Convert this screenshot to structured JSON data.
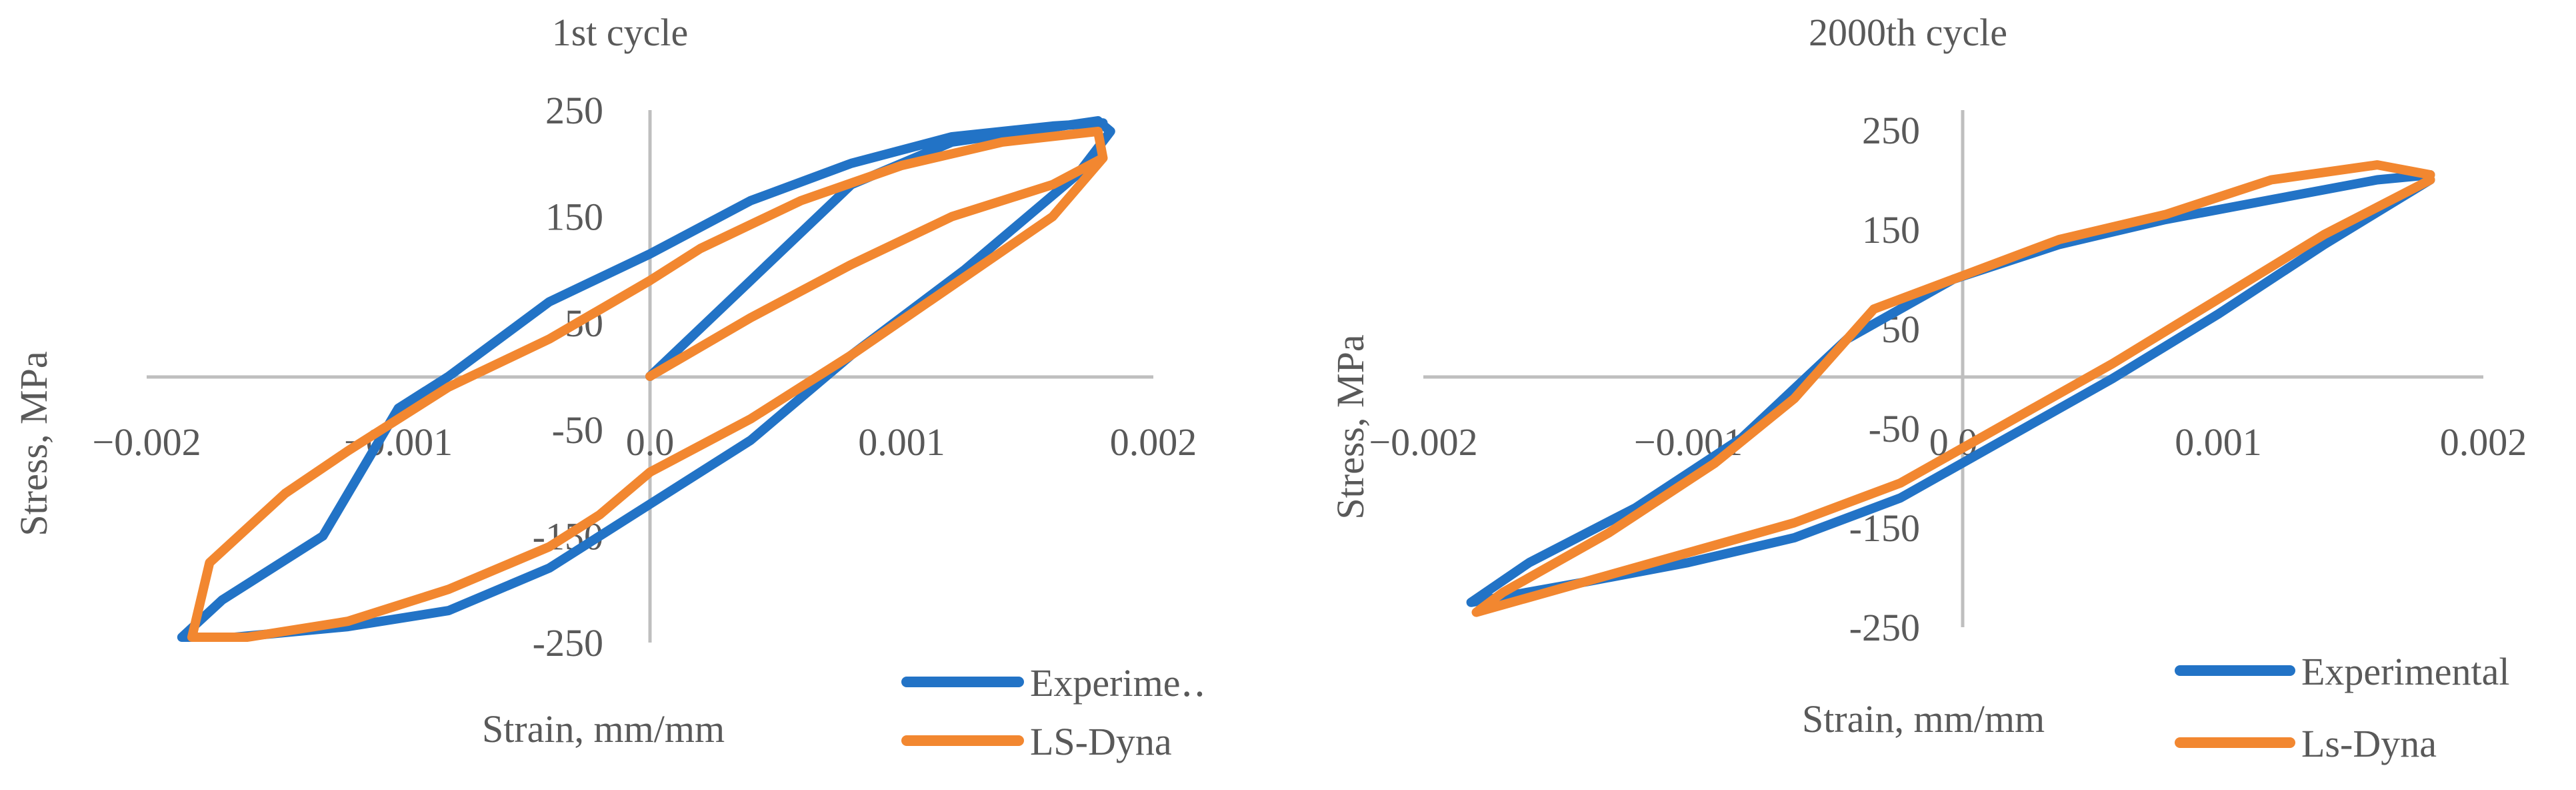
{
  "chart_data": [
    {
      "type": "line",
      "title": "1st cycle",
      "xlabel": "Strain, mm/mm",
      "ylabel": "Stress, MPa",
      "xlim": [
        -0.002,
        0.002
      ],
      "ylim": [
        -250,
        250
      ],
      "x_ticks": [
        "−0.002",
        "−0.001",
        "0.0",
        "0.001",
        "0.002"
      ],
      "y_ticks": [
        "250",
        "150",
        "50",
        "-50",
        "-150",
        "-250"
      ],
      "legend": {
        "position": "bottom-right",
        "entries": [
          "Experime‥",
          "LS-Dyna"
        ]
      },
      "series": [
        {
          "name": "Experimental",
          "color": "#2273c6",
          "points": [
            [
              0.0,
              0.0
            ],
            [
              0.0004,
              90
            ],
            [
              0.0008,
              180
            ],
            [
              0.0012,
              220
            ],
            [
              0.00178,
              240
            ],
            [
              0.00183,
              230
            ],
            [
              0.0017,
              190
            ],
            [
              0.00125,
              100
            ],
            [
              0.0008,
              20
            ],
            [
              0.0004,
              -60
            ],
            [
              0.0,
              -120
            ],
            [
              -0.0004,
              -180
            ],
            [
              -0.0008,
              -220
            ],
            [
              -0.0012,
              -235
            ],
            [
              -0.00165,
              -245
            ],
            [
              -0.00186,
              -245
            ],
            [
              -0.0017,
              -210
            ],
            [
              -0.0013,
              -150
            ],
            [
              -0.001,
              -30
            ],
            [
              -0.0008,
              0
            ],
            [
              -0.0004,
              70
            ],
            [
              0.0,
              115
            ],
            [
              0.0004,
              165
            ],
            [
              0.0008,
              200
            ],
            [
              0.0012,
              225
            ],
            [
              0.0016,
              235
            ],
            [
              0.0018,
              238
            ]
          ]
        },
        {
          "name": "LS-Dyna",
          "color": "#f28730",
          "points": [
            [
              0.0,
              0.0
            ],
            [
              0.0004,
              55
            ],
            [
              0.0008,
              105
            ],
            [
              0.0012,
              150
            ],
            [
              0.0016,
              180
            ],
            [
              0.0018,
              205
            ],
            [
              0.00178,
              230
            ],
            [
              0.0014,
              220
            ],
            [
              0.001,
              198
            ],
            [
              0.0006,
              165
            ],
            [
              0.0002,
              120
            ],
            [
              0.0,
              90
            ],
            [
              -0.0004,
              35
            ],
            [
              -0.0008,
              -10
            ],
            [
              -0.0012,
              -70
            ],
            [
              -0.00145,
              -110
            ],
            [
              -0.00175,
              -175
            ],
            [
              -0.00182,
              -245
            ],
            [
              -0.0016,
              -245
            ],
            [
              -0.0012,
              -230
            ],
            [
              -0.0008,
              -200
            ],
            [
              -0.0004,
              -160
            ],
            [
              -0.0002,
              -130
            ],
            [
              0.0,
              -90
            ],
            [
              0.0004,
              -40
            ],
            [
              0.0008,
              20
            ],
            [
              0.0012,
              85
            ],
            [
              0.0016,
              150
            ],
            [
              0.0018,
              205
            ]
          ]
        }
      ]
    },
    {
      "type": "line",
      "title": "2000th cycle",
      "xlabel": "Strain, mm/mm",
      "ylabel": "Stress, MPa",
      "xlim": [
        -0.002,
        0.002
      ],
      "ylim": [
        -250,
        250
      ],
      "x_ticks": [
        "−0.002",
        "−0.001",
        "0.0",
        "0.001",
        "0.002"
      ],
      "y_ticks": [
        "250",
        "150",
        "50",
        "-50",
        "-150",
        "-250"
      ],
      "legend": {
        "position": "bottom-right",
        "entries": [
          "Experimental",
          "Ls-Dyna"
        ]
      },
      "series": [
        {
          "name": "Experimental",
          "color": "#2273c6",
          "points": [
            [
              0.0018,
              200
            ],
            [
              0.0014,
              135
            ],
            [
              0.001,
              65
            ],
            [
              0.0006,
              0
            ],
            [
              0.0002,
              -60
            ],
            [
              -0.0002,
              -120
            ],
            [
              -0.0006,
              -160
            ],
            [
              -0.001,
              -185
            ],
            [
              -0.0014,
              -205
            ],
            [
              -0.00182,
              -225
            ],
            [
              -0.0016,
              -185
            ],
            [
              -0.0012,
              -130
            ],
            [
              -0.0008,
              -60
            ],
            [
              -0.0004,
              40
            ],
            [
              0.0,
              100
            ],
            [
              0.0004,
              135
            ],
            [
              0.0008,
              160
            ],
            [
              0.0012,
              180
            ],
            [
              0.0016,
              200
            ],
            [
              0.0018,
              205
            ]
          ]
        },
        {
          "name": "Ls-Dyna",
          "color": "#f28730",
          "points": [
            [
              0.0018,
              200
            ],
            [
              0.0014,
              145
            ],
            [
              0.001,
              80
            ],
            [
              0.0006,
              15
            ],
            [
              0.0002,
              -45
            ],
            [
              -0.0002,
              -105
            ],
            [
              -0.0006,
              -145
            ],
            [
              -0.001,
              -175
            ],
            [
              -0.0014,
              -205
            ],
            [
              -0.0018,
              -235
            ],
            [
              -0.0017,
              -215
            ],
            [
              -0.0013,
              -155
            ],
            [
              -0.0009,
              -85
            ],
            [
              -0.0006,
              -20
            ],
            [
              -0.0003,
              70
            ],
            [
              0.0,
              100
            ],
            [
              0.0004,
              140
            ],
            [
              0.0008,
              165
            ],
            [
              0.0012,
              200
            ],
            [
              0.0016,
              215
            ],
            [
              0.0018,
              205
            ]
          ]
        }
      ]
    }
  ]
}
